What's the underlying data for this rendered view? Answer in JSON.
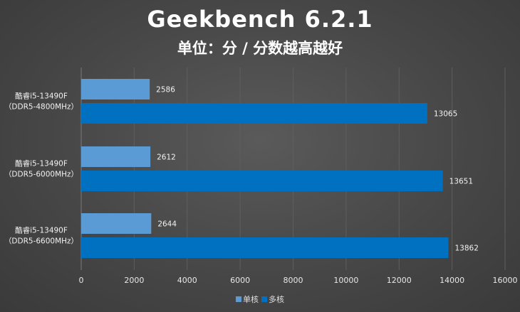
{
  "chart_data": {
    "type": "bar",
    "orientation": "horizontal",
    "title": "Geekbench 6.2.1",
    "subtitle": "单位：分 / 分数越高越好",
    "categories": [
      [
        "酷睿i5-13490F",
        "（DDR5-4800MHz）"
      ],
      [
        "酷睿i5-13490F",
        "（DDR5-6000MHz）"
      ],
      [
        "酷睿i5-13490F",
        "（DDR5-6600MHz）"
      ]
    ],
    "series": [
      {
        "name": "单核",
        "color": "#5b9bd5",
        "values": [
          2586,
          2612,
          2644
        ]
      },
      {
        "name": "多核",
        "color": "#0070c0",
        "values": [
          13065,
          13651,
          13862
        ]
      }
    ],
    "xlim": [
      0,
      16000
    ],
    "xticks": [
      0,
      2000,
      4000,
      6000,
      8000,
      10000,
      12000,
      14000,
      16000
    ],
    "grid": true,
    "legend_position": "bottom"
  }
}
